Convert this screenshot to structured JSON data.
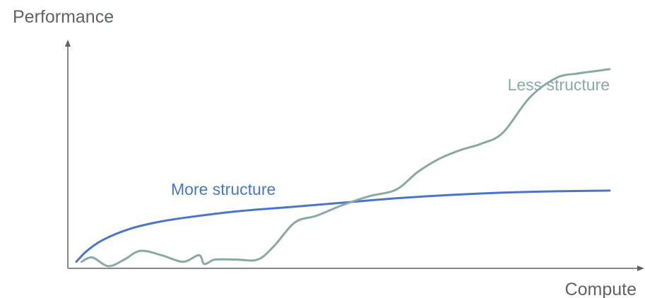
{
  "chart_data": {
    "type": "line",
    "title": "",
    "ylabel": "Performance",
    "xlabel": "Compute",
    "grid": false,
    "xlim": [
      0,
      100
    ],
    "ylim": [
      0,
      100
    ],
    "ticks": "none",
    "series": [
      {
        "name": "More structure",
        "color": "#4a76c9",
        "x": [
          0,
          2,
          5,
          10,
          15,
          20,
          30,
          40,
          50,
          60,
          70,
          80,
          90,
          100
        ],
        "y": [
          3,
          8,
          13,
          18,
          21,
          23,
          26,
          28,
          30,
          32,
          33.5,
          34.6,
          35.2,
          35.5
        ]
      },
      {
        "name": "Less structure",
        "color": "#89aaa4",
        "x": [
          1,
          3,
          6,
          9,
          12,
          16,
          20,
          23,
          24,
          26,
          30,
          34,
          37,
          41,
          45,
          50,
          55,
          60,
          64,
          68,
          72,
          76,
          80,
          85,
          90,
          94,
          97,
          100
        ],
        "y": [
          3,
          5,
          1,
          4,
          8,
          6,
          3,
          6,
          2,
          4,
          4,
          4,
          10,
          21,
          24,
          29,
          33,
          36,
          44,
          50,
          54,
          57,
          62,
          78,
          87,
          89,
          90,
          91
        ]
      }
    ]
  }
}
